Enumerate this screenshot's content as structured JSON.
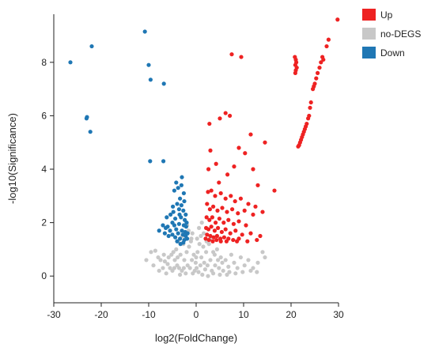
{
  "chart_data": {
    "type": "scatter",
    "xlabel": "log2(FoldChange)",
    "ylabel": "-log10(Significance)",
    "xlim": [
      -30,
      30
    ],
    "ylim": [
      -1,
      9.8
    ],
    "xticks": [
      -30,
      -20,
      -10,
      0,
      10,
      20,
      30
    ],
    "yticks": [
      0,
      2,
      4,
      6,
      8
    ],
    "grid": false,
    "legend_position": "top-right",
    "legend": [
      {
        "name": "Up",
        "color": "#ee2222"
      },
      {
        "name": "no-DEGS",
        "color": "#c8c8c8"
      },
      {
        "name": "Down",
        "color": "#1f77b4"
      }
    ],
    "series": [
      {
        "name": "no-DEGS",
        "color": "#c8c8c8",
        "points": [
          [
            -9.5,
            0.9
          ],
          [
            -8.6,
            0.95
          ],
          [
            -8.0,
            0.7
          ],
          [
            -7.5,
            0.6
          ],
          [
            -7.0,
            0.3
          ],
          [
            -6.6,
            0.55
          ],
          [
            -6.0,
            0.45
          ],
          [
            -5.5,
            0.3
          ],
          [
            -5.0,
            0.2
          ],
          [
            -4.5,
            0.6
          ],
          [
            -4.2,
            1.0
          ],
          [
            -4.0,
            0.4
          ],
          [
            -3.6,
            0.3
          ],
          [
            -3.3,
            0.8
          ],
          [
            -3.0,
            0.2
          ],
          [
            -2.7,
            1.2
          ],
          [
            -2.5,
            0.6
          ],
          [
            -2.2,
            0.1
          ],
          [
            -2.0,
            0.9
          ],
          [
            -1.8,
            0.4
          ],
          [
            -1.5,
            1.1
          ],
          [
            -1.3,
            0.3
          ],
          [
            -1.1,
            1.3
          ],
          [
            -0.9,
            0.6
          ],
          [
            -0.7,
            0.1
          ],
          [
            -0.5,
            0.8
          ],
          [
            -0.3,
            0.2
          ],
          [
            -0.1,
            0.5
          ],
          [
            0.1,
            0.3
          ],
          [
            0.3,
            0.9
          ],
          [
            0.5,
            0.15
          ],
          [
            0.7,
            1.2
          ],
          [
            0.9,
            0.4
          ],
          [
            1.1,
            0.7
          ],
          [
            1.3,
            0.05
          ],
          [
            1.5,
            1.1
          ],
          [
            1.7,
            0.5
          ],
          [
            1.9,
            0.25
          ],
          [
            2.1,
            0.9
          ],
          [
            2.4,
            0.4
          ],
          [
            2.7,
            1.2
          ],
          [
            3.0,
            0.6
          ],
          [
            3.3,
            0.2
          ],
          [
            3.6,
            0.9
          ],
          [
            4.0,
            0.4
          ],
          [
            4.4,
            1.0
          ],
          [
            4.8,
            0.3
          ],
          [
            5.2,
            0.7
          ],
          [
            5.7,
            0.2
          ],
          [
            6.2,
            0.6
          ],
          [
            6.8,
            0.35
          ],
          [
            7.4,
            0.8
          ],
          [
            8.0,
            0.5
          ],
          [
            8.7,
            0.3
          ],
          [
            9.4,
            0.7
          ],
          [
            10.2,
            0.4
          ],
          [
            11.0,
            0.6
          ],
          [
            12.0,
            0.3
          ],
          [
            13.0,
            0.5
          ],
          [
            14.0,
            0.9
          ],
          [
            -4.8,
            0.9
          ],
          [
            -3.8,
            1.3
          ],
          [
            -2.9,
            1.5
          ],
          [
            -2.3,
            1.6
          ],
          [
            -1.6,
            1.7
          ],
          [
            -1.0,
            1.4
          ],
          [
            1.0,
            1.5
          ],
          [
            1.6,
            1.6
          ],
          [
            2.2,
            1.3
          ],
          [
            2.9,
            1.4
          ],
          [
            -6.3,
            0.1
          ],
          [
            -5.2,
            0.8
          ],
          [
            -3.9,
            0.7
          ],
          [
            -1.9,
            1.9
          ],
          [
            -0.8,
            1.6
          ],
          [
            0.6,
            1.8
          ],
          [
            1.2,
            2.0
          ],
          [
            3.6,
            0.1
          ],
          [
            5.0,
            0.05
          ],
          [
            6.5,
            0.05
          ],
          [
            -10.5,
            0.6
          ],
          [
            -9.0,
            0.4
          ],
          [
            -7.8,
            0.2
          ],
          [
            -6.8,
            0.8
          ],
          [
            -5.8,
            0.7
          ],
          [
            -4.6,
            0.3
          ],
          [
            -3.4,
            0.05
          ],
          [
            -2.6,
            0.3
          ],
          [
            0.0,
            0.7
          ],
          [
            0.2,
            1.4
          ],
          [
            2.5,
            0.0
          ],
          [
            3.9,
            0.8
          ],
          [
            4.6,
            0.6
          ],
          [
            5.5,
            0.5
          ],
          [
            7.0,
            0.15
          ],
          [
            8.3,
            0.1
          ],
          [
            9.8,
            0.15
          ],
          [
            11.5,
            0.2
          ],
          [
            12.8,
            0.15
          ],
          [
            14.5,
            0.7
          ]
        ]
      },
      {
        "name": "Down",
        "color": "#1f77b4",
        "points": [
          [
            -26.5,
            8.0
          ],
          [
            -22.0,
            8.6
          ],
          [
            -23.0,
            5.95
          ],
          [
            -23.1,
            5.9
          ],
          [
            -22.3,
            5.4
          ],
          [
            -10.8,
            9.15
          ],
          [
            -10.0,
            7.9
          ],
          [
            -9.6,
            7.35
          ],
          [
            -6.8,
            7.2
          ],
          [
            -9.7,
            4.3
          ],
          [
            -6.9,
            4.3
          ],
          [
            -4.2,
            3.5
          ],
          [
            -3.8,
            3.3
          ],
          [
            -3.1,
            3.4
          ],
          [
            -2.6,
            3.1
          ],
          [
            -4.6,
            3.2
          ],
          [
            -3.4,
            2.9
          ],
          [
            -2.5,
            2.8
          ],
          [
            -4.0,
            2.7
          ],
          [
            -3.1,
            2.65
          ],
          [
            -5.4,
            2.3
          ],
          [
            -4.8,
            2.4
          ],
          [
            -3.6,
            2.5
          ],
          [
            -2.7,
            2.45
          ],
          [
            -2.2,
            2.3
          ],
          [
            -6.2,
            2.2
          ],
          [
            -4.4,
            2.15
          ],
          [
            -3.2,
            2.2
          ],
          [
            -2.4,
            2.1
          ],
          [
            -5.0,
            2.0
          ],
          [
            -7.0,
            1.9
          ],
          [
            -6.0,
            1.85
          ],
          [
            -4.6,
            1.9
          ],
          [
            -3.6,
            1.95
          ],
          [
            -2.6,
            1.9
          ],
          [
            -2.1,
            1.85
          ],
          [
            -5.5,
            1.7
          ],
          [
            -4.2,
            1.75
          ],
          [
            -3.0,
            1.7
          ],
          [
            -2.3,
            1.65
          ],
          [
            -6.6,
            1.6
          ],
          [
            -5.0,
            1.55
          ],
          [
            -3.8,
            1.6
          ],
          [
            -2.8,
            1.55
          ],
          [
            -2.2,
            1.5
          ],
          [
            -4.4,
            1.45
          ],
          [
            -3.4,
            1.4
          ],
          [
            -2.5,
            1.35
          ],
          [
            -3.0,
            3.7
          ],
          [
            -4.9,
            2.6
          ],
          [
            -1.9,
            1.4
          ],
          [
            -2.0,
            2.0
          ],
          [
            -1.8,
            1.6
          ],
          [
            -3.3,
            1.2
          ],
          [
            -2.7,
            1.25
          ],
          [
            -4.0,
            1.3
          ],
          [
            -5.8,
            1.5
          ],
          [
            -6.4,
            1.8
          ],
          [
            -7.8,
            1.7
          ],
          [
            -3.5,
            2.3
          ]
        ]
      },
      {
        "name": "Up",
        "color": "#ee2222",
        "points": [
          [
            7.5,
            8.3
          ],
          [
            9.5,
            8.2
          ],
          [
            6.2,
            6.1
          ],
          [
            5.0,
            5.9
          ],
          [
            2.8,
            5.7
          ],
          [
            7.1,
            6.0
          ],
          [
            11.5,
            5.3
          ],
          [
            14.5,
            5.0
          ],
          [
            9.0,
            4.8
          ],
          [
            3.0,
            4.7
          ],
          [
            10.3,
            4.6
          ],
          [
            4.2,
            4.2
          ],
          [
            8.0,
            4.1
          ],
          [
            2.6,
            4.0
          ],
          [
            12.0,
            4.0
          ],
          [
            6.6,
            3.8
          ],
          [
            4.8,
            3.5
          ],
          [
            13.0,
            3.4
          ],
          [
            16.5,
            3.2
          ],
          [
            2.5,
            3.15
          ],
          [
            3.2,
            3.2
          ],
          [
            4.0,
            3.0
          ],
          [
            5.2,
            3.1
          ],
          [
            6.2,
            2.9
          ],
          [
            7.3,
            3.0
          ],
          [
            8.2,
            2.8
          ],
          [
            9.4,
            2.9
          ],
          [
            11.0,
            2.7
          ],
          [
            12.5,
            2.6
          ],
          [
            2.3,
            2.7
          ],
          [
            2.9,
            2.5
          ],
          [
            3.6,
            2.6
          ],
          [
            4.5,
            2.45
          ],
          [
            5.5,
            2.55
          ],
          [
            6.5,
            2.4
          ],
          [
            7.6,
            2.5
          ],
          [
            8.8,
            2.35
          ],
          [
            10.2,
            2.45
          ],
          [
            12.0,
            2.3
          ],
          [
            14.0,
            2.4
          ],
          [
            2.2,
            2.2
          ],
          [
            2.8,
            2.1
          ],
          [
            3.4,
            2.2
          ],
          [
            4.1,
            2.0
          ],
          [
            4.9,
            2.15
          ],
          [
            5.8,
            2.0
          ],
          [
            6.8,
            2.1
          ],
          [
            7.9,
            1.95
          ],
          [
            9.0,
            2.05
          ],
          [
            10.5,
            1.9
          ],
          [
            2.1,
            1.8
          ],
          [
            2.6,
            1.75
          ],
          [
            3.2,
            1.85
          ],
          [
            3.9,
            1.7
          ],
          [
            4.6,
            1.8
          ],
          [
            5.4,
            1.65
          ],
          [
            6.2,
            1.75
          ],
          [
            7.2,
            1.6
          ],
          [
            8.3,
            1.7
          ],
          [
            9.7,
            1.55
          ],
          [
            11.5,
            1.6
          ],
          [
            13.5,
            1.5
          ],
          [
            2.3,
            1.55
          ],
          [
            3.0,
            1.5
          ],
          [
            3.7,
            1.45
          ],
          [
            4.4,
            1.5
          ],
          [
            5.1,
            1.4
          ],
          [
            5.9,
            1.45
          ],
          [
            6.8,
            1.4
          ],
          [
            7.8,
            1.35
          ],
          [
            9.0,
            1.4
          ],
          [
            10.8,
            1.3
          ],
          [
            12.8,
            1.35
          ],
          [
            2.0,
            1.4
          ],
          [
            2.7,
            1.35
          ],
          [
            3.5,
            1.3
          ],
          [
            4.3,
            1.35
          ],
          [
            5.2,
            1.3
          ],
          [
            6.4,
            1.3
          ],
          [
            8.6,
            1.3
          ],
          [
            20.8,
            8.2
          ],
          [
            21.0,
            8.1
          ],
          [
            21.1,
            8.0
          ],
          [
            20.9,
            7.9
          ],
          [
            21.2,
            7.8
          ],
          [
            21.0,
            7.7
          ],
          [
            20.9,
            7.6
          ],
          [
            25.0,
            7.2
          ],
          [
            25.3,
            7.4
          ],
          [
            25.6,
            7.6
          ],
          [
            26.0,
            7.8
          ],
          [
            26.3,
            8.0
          ],
          [
            26.6,
            8.2
          ],
          [
            26.8,
            8.1
          ],
          [
            24.8,
            7.1
          ],
          [
            24.6,
            7.0
          ],
          [
            24.2,
            6.5
          ],
          [
            24.0,
            6.3
          ],
          [
            23.8,
            6.0
          ],
          [
            23.6,
            5.9
          ],
          [
            23.3,
            5.7
          ],
          [
            23.1,
            5.6
          ],
          [
            22.9,
            5.5
          ],
          [
            22.7,
            5.4
          ],
          [
            22.5,
            5.3
          ],
          [
            22.3,
            5.2
          ],
          [
            22.1,
            5.1
          ],
          [
            21.9,
            5.0
          ],
          [
            21.7,
            4.9
          ],
          [
            21.5,
            4.85
          ],
          [
            29.8,
            9.6
          ],
          [
            27.9,
            8.85
          ],
          [
            27.5,
            8.6
          ]
        ]
      }
    ]
  }
}
